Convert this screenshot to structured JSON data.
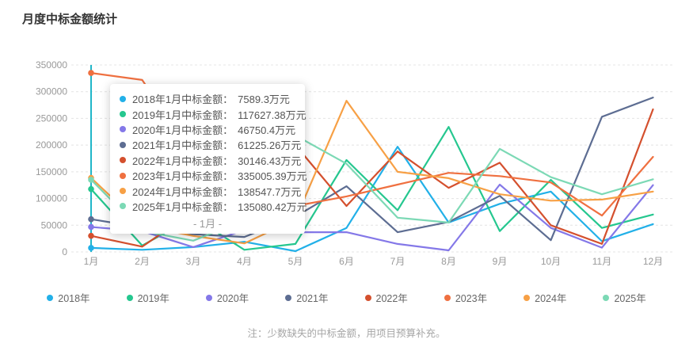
{
  "title": "月度中标金额统计",
  "note": "注：少数缺失的中标金额，用项目预算补充。",
  "colors": {
    "axis_pointer": "#20b6c9",
    "grid_line": "#e4e4e4",
    "axis_label": "#999999",
    "title_text": "#333333",
    "note_text": "#a6a6a6"
  },
  "chart_data": {
    "type": "line",
    "x": [
      "1月",
      "2月",
      "3月",
      "4月",
      "5月",
      "6月",
      "7月",
      "8月",
      "9月",
      "10月",
      "11月",
      "12月"
    ],
    "xlabel": "",
    "ylabel": "",
    "ylim": [
      0,
      350000
    ],
    "y_ticks": [
      0,
      50000,
      100000,
      150000,
      200000,
      250000,
      300000,
      350000
    ],
    "grid": true,
    "legend_position": "bottom",
    "hover_month_index": 0,
    "series": [
      {
        "name": "2018年",
        "color": "#22b0e8",
        "values": [
          7589.3,
          4000,
          9000,
          19000,
          1500,
          45000,
          197000,
          55000,
          90000,
          113000,
          20000,
          52000
        ]
      },
      {
        "name": "2019年",
        "color": "#25c78f",
        "values": [
          117627.38,
          12000,
          65000,
          4000,
          15000,
          172000,
          78000,
          234000,
          39000,
          135000,
          45000,
          70000
        ]
      },
      {
        "name": "2020年",
        "color": "#8478e8",
        "values": [
          46750.4,
          39000,
          9000,
          41000,
          37000,
          37000,
          15000,
          3000,
          126000,
          45000,
          8000,
          125000
        ]
      },
      {
        "name": "2021年",
        "color": "#5d6d92",
        "values": [
          61225.26,
          46000,
          33000,
          28000,
          66000,
          123000,
          37000,
          56000,
          105000,
          22000,
          253000,
          289000
        ]
      },
      {
        "name": "2022年",
        "color": "#d4502e",
        "values": [
          30146.43,
          10000,
          75000,
          140000,
          200000,
          86000,
          188000,
          120000,
          167000,
          50000,
          15000,
          267000
        ]
      },
      {
        "name": "2023年",
        "color": "#ef7040",
        "values": [
          335005.39,
          322000,
          180000,
          120000,
          86000,
          104000,
          126000,
          148000,
          142000,
          130000,
          68000,
          178000
        ]
      },
      {
        "name": "2024年",
        "color": "#f7a045",
        "values": [
          138547.7,
          49000,
          30000,
          16000,
          61000,
          283000,
          150000,
          138000,
          108000,
          96000,
          98000,
          113000
        ]
      },
      {
        "name": "2025年",
        "color": "#7cd9b5",
        "values": [
          135080.42,
          39000,
          21000,
          59000,
          218000,
          165000,
          64000,
          55000,
          193000,
          140000,
          108000,
          136000
        ]
      }
    ]
  },
  "tooltip": {
    "footer": "- 1月 -",
    "rows": [
      {
        "label": "2018年1月中标金额",
        "value": "7589.3万元",
        "color": "#22b0e8"
      },
      {
        "label": "2019年1月中标金额",
        "value": "117627.38万元",
        "color": "#25c78f"
      },
      {
        "label": "2020年1月中标金额",
        "value": "46750.4万元",
        "color": "#8478e8"
      },
      {
        "label": "2021年1月中标金额",
        "value": "61225.26万元",
        "color": "#5d6d92"
      },
      {
        "label": "2022年1月中标金额",
        "value": "30146.43万元",
        "color": "#d4502e"
      },
      {
        "label": "2023年1月中标金额",
        "value": "335005.39万元",
        "color": "#ef7040"
      },
      {
        "label": "2024年1月中标金额",
        "value": "138547.7万元",
        "color": "#f7a045"
      },
      {
        "label": "2025年1月中标金额",
        "value": "135080.42万元",
        "color": "#7cd9b5"
      }
    ]
  }
}
